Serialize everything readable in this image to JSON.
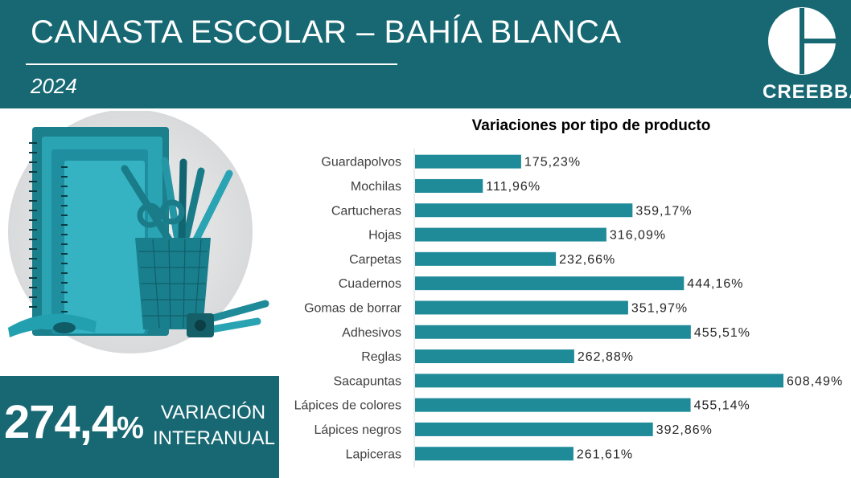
{
  "header": {
    "title": "CANASTA ESCOLAR – BAHÍA BLANCA",
    "year": "2024",
    "brand": "CREEBBA"
  },
  "kpi": {
    "value": "274,4",
    "unit": "%",
    "label_line1": "VARIACIÓN",
    "label_line2": "INTERANUAL"
  },
  "colors": {
    "header_bg": "#176873",
    "bar": "#1f8b99",
    "text": "#262626"
  },
  "icons": [
    "creebba-logo",
    "school-supplies-illustration"
  ],
  "chart_data": {
    "type": "bar",
    "orientation": "horizontal",
    "title": "Variaciones por tipo de producto",
    "categories": [
      "Guardapolvos",
      "Mochilas",
      "Cartucheras",
      "Hojas",
      "Carpetas",
      "Cuadernos",
      "Gomas de borrar",
      "Adhesivos",
      "Reglas",
      "Sacapuntas",
      "Lápices de colores",
      "Lápices negros",
      "Lapiceras"
    ],
    "values": [
      175.23,
      111.96,
      359.17,
      316.09,
      232.66,
      444.16,
      351.97,
      455.51,
      262.88,
      608.49,
      455.14,
      392.86,
      261.61
    ],
    "labels": [
      "175,23%",
      "111,96%",
      "359,17%",
      "316,09%",
      "232,66%",
      "444,16%",
      "351,97%",
      "455,51%",
      "262,88%",
      "608,49%",
      "455,14%",
      "392,86%",
      "261,61%"
    ],
    "xlim": [
      0,
      608.49
    ],
    "grid": false,
    "legend": "none"
  }
}
